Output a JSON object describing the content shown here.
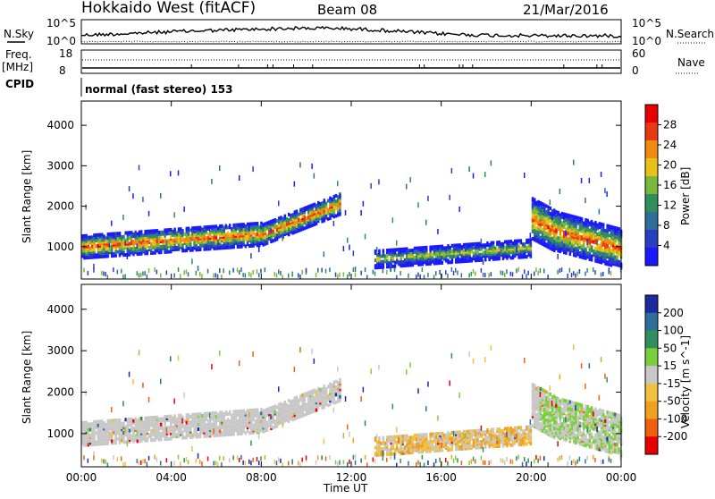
{
  "header": {
    "station": "Hokkaido West (fitACF)",
    "beam": "Beam 08",
    "date": "21/Mar/2016"
  },
  "top_panels": {
    "nsky_label": "N.Sky",
    "nsearch_label": "N.Search",
    "noise_left_ticks": [
      "10^5",
      "10^0"
    ],
    "noise_right_ticks": [
      "10^5",
      "10^0"
    ],
    "freq_label": "Freq.",
    "freq_unit": "[MHz]",
    "freq_ticks": [
      "18",
      "8"
    ],
    "nave_label": "Nave",
    "nave_ticks": [
      "60",
      "0"
    ],
    "cpid_label": "CPID",
    "cpid_text": "normal (fast stereo) 153"
  },
  "colors": {
    "power": [
      "#1a1aff",
      "#2a3fbf",
      "#2e6e9a",
      "#2f8f5a",
      "#7ab83a",
      "#e8c21a",
      "#f08a10",
      "#e83a10",
      "#e80000"
    ],
    "velocity": [
      "#1c2a9f",
      "#2e6e9a",
      "#2f8f5a",
      "#7ad03a",
      "#c8c8c8",
      "#f0c040",
      "#f0a020",
      "#f06010",
      "#e80000"
    ]
  },
  "chart_data": [
    {
      "type": "heatmap",
      "title": "Power",
      "ylabel": "Slant Range [km]",
      "xlabel": "",
      "x_ticks": [
        "00:00",
        "04:00",
        "08:00",
        "12:00",
        "16:00",
        "20:00",
        "00:00"
      ],
      "y_ticks": [
        "1000",
        "2000",
        "3000",
        "4000"
      ],
      "ylim": [
        200,
        4600
      ],
      "x_range_hours": [
        0,
        24
      ],
      "colorbar_label": "Power [dB]",
      "colorbar_ticks": [
        "4",
        "8",
        "12",
        "16",
        "20",
        "24",
        "28"
      ]
    },
    {
      "type": "heatmap",
      "title": "Velocity",
      "ylabel": "Slant Range [km]",
      "xlabel": "Time UT",
      "x_ticks": [
        "00:00",
        "04:00",
        "08:00",
        "12:00",
        "16:00",
        "20:00",
        "00:00"
      ],
      "y_ticks": [
        "1000",
        "2000",
        "3000",
        "4000"
      ],
      "ylim": [
        200,
        4600
      ],
      "x_range_hours": [
        0,
        24
      ],
      "colorbar_label": "Velocity [m s^-1]",
      "colorbar_ticks": [
        "200",
        "100",
        "50",
        "15",
        "-15",
        "-50",
        "-100",
        "-200"
      ]
    }
  ]
}
